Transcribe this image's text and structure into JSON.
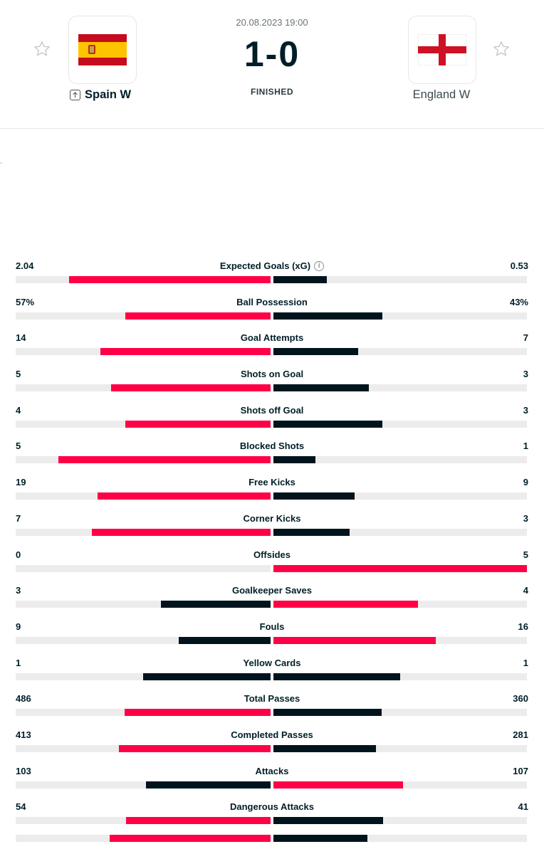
{
  "match": {
    "datetime": "20.08.2023 19:00",
    "score": "1-0",
    "status": "FINISHED",
    "home": {
      "name": "Spain W",
      "flag": "spain-flag"
    },
    "away": {
      "name": "England W",
      "flag": "england-flag"
    }
  },
  "colors": {
    "leading": "#ff0046",
    "trailing": "#00141e",
    "track": "#ececec"
  },
  "stats": [
    {
      "label": "Expected Goals (xG)",
      "home": "2.04",
      "away": "0.53",
      "home_share": 0.79,
      "away_share": 0.21,
      "leader": "home",
      "info": true
    },
    {
      "label": "Ball Possession",
      "home": "57%",
      "away": "43%",
      "home_share": 0.57,
      "away_share": 0.43,
      "leader": "home"
    },
    {
      "label": "Goal Attempts",
      "home": "14",
      "away": "7",
      "home_share": 0.667,
      "away_share": 0.333,
      "leader": "home"
    },
    {
      "label": "Shots on Goal",
      "home": "5",
      "away": "3",
      "home_share": 0.625,
      "away_share": 0.375,
      "leader": "home"
    },
    {
      "label": "Shots off Goal",
      "home": "4",
      "away": "3",
      "home_share": 0.571,
      "away_share": 0.429,
      "leader": "home"
    },
    {
      "label": "Blocked Shots",
      "home": "5",
      "away": "1",
      "home_share": 0.833,
      "away_share": 0.167,
      "leader": "home"
    },
    {
      "label": "Free Kicks",
      "home": "19",
      "away": "9",
      "home_share": 0.679,
      "away_share": 0.321,
      "leader": "home"
    },
    {
      "label": "Corner Kicks",
      "home": "7",
      "away": "3",
      "home_share": 0.7,
      "away_share": 0.3,
      "leader": "home"
    },
    {
      "label": "Offsides",
      "home": "0",
      "away": "5",
      "home_share": 0,
      "away_share": 1,
      "leader": "away"
    },
    {
      "label": "Goalkeeper Saves",
      "home": "3",
      "away": "4",
      "home_share": 0.429,
      "away_share": 0.571,
      "leader": "away"
    },
    {
      "label": "Fouls",
      "home": "9",
      "away": "16",
      "home_share": 0.36,
      "away_share": 0.64,
      "leader": "away"
    },
    {
      "label": "Yellow Cards",
      "home": "1",
      "away": "1",
      "home_share": 0.5,
      "away_share": 0.5,
      "leader": "none"
    },
    {
      "label": "Total Passes",
      "home": "486",
      "away": "360",
      "home_share": 0.574,
      "away_share": 0.426,
      "leader": "home"
    },
    {
      "label": "Completed Passes",
      "home": "413",
      "away": "281",
      "home_share": 0.595,
      "away_share": 0.405,
      "leader": "home"
    },
    {
      "label": "Attacks",
      "home": "103",
      "away": "107",
      "home_share": 0.49,
      "away_share": 0.51,
      "leader": "away"
    },
    {
      "label": "Dangerous Attacks",
      "home": "54",
      "away": "41",
      "home_share": 0.568,
      "away_share": 0.432,
      "leader": "home"
    },
    {
      "label": "",
      "home": "",
      "away": "",
      "home_share": 0.63,
      "away_share": 0.37,
      "leader": "home",
      "partial": true
    }
  ]
}
